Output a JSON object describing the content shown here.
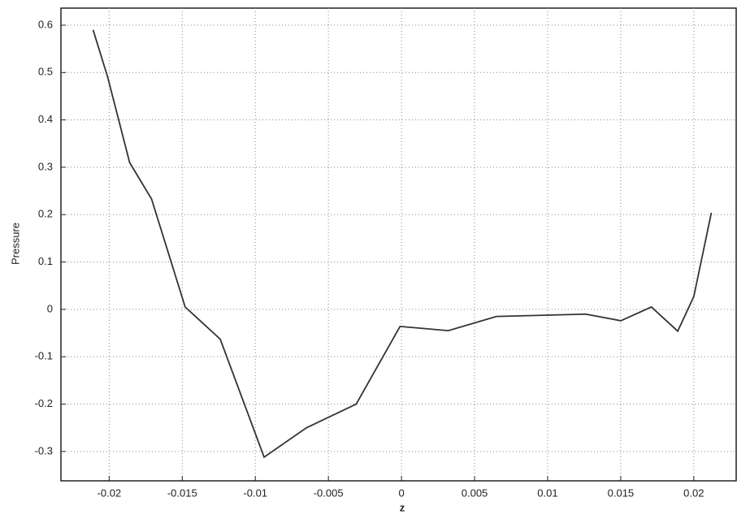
{
  "chart_data": {
    "type": "line",
    "x_label": "z",
    "y_label": "Pressure",
    "x": [
      -0.0211,
      -0.0201,
      -0.0186,
      -0.0171,
      -0.0148,
      -0.0124,
      -0.0094,
      -0.0065,
      -0.0031,
      -0.0001,
      0.0032,
      0.0065,
      0.0103,
      0.0126,
      0.015,
      0.0171,
      0.0189,
      0.02,
      0.0212
    ],
    "values": [
      0.59,
      0.49,
      0.31,
      0.233,
      0.005,
      -0.063,
      -0.312,
      -0.25,
      -0.2,
      -0.036,
      -0.045,
      -0.015,
      -0.012,
      -0.01,
      -0.024,
      0.005,
      -0.046,
      0.027,
      0.204
    ],
    "color": "#333333",
    "xlim": [
      -0.0233,
      0.0229
    ],
    "xticks": [
      -0.02,
      -0.015,
      -0.01,
      -0.005,
      0,
      0.005,
      0.01,
      0.015,
      0.02
    ],
    "ylim": [
      -0.362,
      0.636
    ],
    "yticks": [
      -0.3,
      -0.2,
      -0.1,
      0,
      0.1,
      0.2,
      0.3,
      0.4,
      0.5,
      0.6
    ],
    "grid": true
  }
}
